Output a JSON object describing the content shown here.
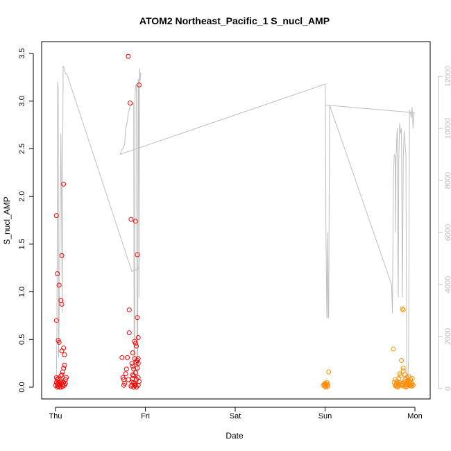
{
  "chart_data": {
    "type": "scatter",
    "title": "ATOM2 Northeast_Pacific_1 S_nucl_AMP",
    "xlabel": "Date",
    "ylabel": "S_nucl_AMP",
    "x_ticks": [
      "Thu",
      "Fri",
      "Sat",
      "Sun",
      "Mon"
    ],
    "ylim": [
      0,
      3.5
    ],
    "y_ticks": [
      "0.0",
      "0.5",
      "1.0",
      "1.5",
      "2.0",
      "2.5",
      "3.0",
      "3.5"
    ],
    "y2lim": [
      0,
      12000
    ],
    "y2_ticks": [
      "0",
      "2000",
      "4000",
      "6000",
      "8000",
      "10000",
      "12000"
    ],
    "colors": {
      "scatter_early": "#ff0000",
      "scatter_late": "#ff8c00",
      "line": "#bebebe",
      "axis": "#000000",
      "right_axis": "#bdbdbd"
    },
    "scatter_red": [
      [
        0.0,
        0.02
      ],
      [
        0.01,
        0.05
      ],
      [
        0.01,
        0.1
      ],
      [
        0.01,
        0.7
      ],
      [
        0.01,
        1.8
      ],
      [
        0.02,
        0.0
      ],
      [
        0.02,
        0.03
      ],
      [
        0.02,
        1.19
      ],
      [
        0.03,
        0.49
      ],
      [
        0.03,
        0.04
      ],
      [
        0.03,
        0.01
      ],
      [
        0.04,
        0.47
      ],
      [
        0.04,
        1.07
      ],
      [
        0.05,
        0.02
      ],
      [
        0.05,
        0.08
      ],
      [
        0.06,
        0.06
      ],
      [
        0.06,
        0.91
      ],
      [
        0.06,
        0.0
      ],
      [
        0.07,
        0.87
      ],
      [
        0.07,
        0.13
      ],
      [
        0.07,
        1.38
      ],
      [
        0.07,
        0.38
      ],
      [
        0.08,
        0.16
      ],
      [
        0.08,
        0.03
      ],
      [
        0.09,
        0.2
      ],
      [
        0.09,
        0.05
      ],
      [
        0.09,
        2.13
      ],
      [
        0.09,
        0.41
      ],
      [
        0.1,
        0.34
      ],
      [
        0.1,
        0.23
      ],
      [
        0.11,
        0.08
      ],
      [
        0.11,
        0.04
      ],
      [
        0.12,
        0.1
      ],
      [
        0.05,
        0.0
      ],
      [
        0.04,
        0.05
      ],
      [
        0.08,
        0.01
      ],
      [
        0.06,
        0.12
      ],
      [
        0.03,
        0.09
      ],
      [
        0.1,
        0.02
      ],
      [
        0.02,
        0.08
      ],
      [
        0.74,
        0.31
      ],
      [
        0.75,
        0.1
      ],
      [
        0.76,
        0.02
      ],
      [
        0.76,
        0.08
      ],
      [
        0.77,
        0.04
      ],
      [
        0.78,
        0.14
      ],
      [
        0.79,
        0.19
      ],
      [
        0.8,
        0.31
      ],
      [
        0.81,
        0.08
      ],
      [
        0.82,
        0.81
      ],
      [
        0.82,
        0.57
      ],
      [
        0.83,
        2.98
      ],
      [
        0.84,
        1.76
      ],
      [
        0.85,
        0.02
      ],
      [
        0.85,
        0.25
      ],
      [
        0.86,
        0.09
      ],
      [
        0.86,
        0.36
      ],
      [
        0.87,
        0.0
      ],
      [
        0.87,
        0.05
      ],
      [
        0.88,
        0.02
      ],
      [
        0.88,
        0.48
      ],
      [
        0.89,
        0.46
      ],
      [
        0.89,
        1.74
      ],
      [
        0.89,
        0.15
      ],
      [
        0.9,
        0.26
      ],
      [
        0.9,
        0.43
      ],
      [
        0.91,
        1.39
      ],
      [
        0.91,
        0.73
      ],
      [
        0.92,
        0.02
      ],
      [
        0.92,
        0.3
      ],
      [
        0.92,
        0.52
      ],
      [
        0.93,
        3.17
      ],
      [
        0.93,
        0.06
      ],
      [
        0.81,
        3.47
      ],
      [
        0.87,
        0.19
      ],
      [
        0.9,
        0.08
      ],
      [
        0.91,
        0.28
      ],
      [
        0.88,
        0.04
      ],
      [
        0.92,
        0.1
      ],
      [
        0.86,
        0.13
      ],
      [
        0.85,
        0.05
      ],
      [
        0.89,
        0.02
      ],
      [
        0.91,
        0.2
      ],
      [
        0.84,
        0.01
      ],
      [
        0.88,
        0.3
      ],
      [
        0.9,
        0.0
      ],
      [
        0.86,
        0.22
      ],
      [
        0.92,
        0.25
      ],
      [
        0.87,
        0.12
      ]
    ],
    "scatter_orange": [
      [
        2.98,
        0.02
      ],
      [
        2.99,
        0.03
      ],
      [
        3.0,
        0.04
      ],
      [
        3.0,
        0.01
      ],
      [
        3.01,
        0.03
      ],
      [
        3.01,
        0.0
      ],
      [
        3.02,
        0.02
      ],
      [
        3.02,
        0.05
      ],
      [
        3.03,
        0.03
      ],
      [
        3.04,
        0.16
      ],
      [
        3.03,
        0.01
      ],
      [
        3.0,
        0.02
      ],
      [
        3.76,
        0.4
      ],
      [
        3.77,
        0.05
      ],
      [
        3.78,
        0.02
      ],
      [
        3.78,
        0.08
      ],
      [
        3.79,
        0.03
      ],
      [
        3.8,
        0.06
      ],
      [
        3.8,
        0.01
      ],
      [
        3.81,
        0.04
      ],
      [
        3.82,
        0.02
      ],
      [
        3.82,
        0.09
      ],
      [
        3.83,
        0.05
      ],
      [
        3.84,
        0.03
      ],
      [
        3.84,
        0.12
      ],
      [
        3.85,
        0.02
      ],
      [
        3.85,
        0.28
      ],
      [
        3.86,
        0.04
      ],
      [
        3.86,
        0.82
      ],
      [
        3.87,
        0.81
      ],
      [
        3.87,
        0.17
      ],
      [
        3.88,
        0.06
      ],
      [
        3.88,
        0.01
      ],
      [
        3.89,
        0.03
      ],
      [
        3.89,
        0.08
      ],
      [
        3.9,
        0.02
      ],
      [
        3.9,
        0.05
      ],
      [
        3.91,
        0.1
      ],
      [
        3.91,
        0.01
      ],
      [
        3.92,
        0.04
      ],
      [
        3.92,
        0.07
      ],
      [
        3.93,
        0.02
      ],
      [
        3.93,
        0.03
      ],
      [
        3.94,
        0.06
      ],
      [
        3.94,
        0.05
      ],
      [
        3.95,
        0.08
      ],
      [
        3.95,
        0.02
      ],
      [
        3.96,
        0.01
      ],
      [
        3.96,
        0.04
      ],
      [
        3.97,
        0.03
      ],
      [
        3.97,
        0.09
      ],
      [
        3.98,
        0.02
      ],
      [
        3.83,
        0.14
      ],
      [
        3.87,
        0.2
      ],
      [
        3.89,
        0.13
      ],
      [
        3.81,
        0.0
      ],
      [
        3.93,
        0.11
      ],
      [
        3.86,
        0.02
      ],
      [
        3.9,
        0.0
      ],
      [
        3.79,
        0.01
      ]
    ],
    "line_series_right_axis": [
      [
        0.0,
        0
      ],
      [
        0.01,
        600
      ],
      [
        0.015,
        1800
      ],
      [
        0.02,
        6500
      ],
      [
        0.025,
        11800
      ],
      [
        0.03,
        11500
      ],
      [
        0.035,
        1200
      ],
      [
        0.04,
        2700
      ],
      [
        0.05,
        6000
      ],
      [
        0.06,
        9800
      ],
      [
        0.07,
        5500
      ],
      [
        0.075,
        2900
      ],
      [
        0.08,
        9000
      ],
      [
        0.085,
        12400
      ],
      [
        0.1,
        12300
      ],
      [
        0.11,
        12100
      ],
      [
        0.125,
        12100
      ],
      [
        0.85,
        4500
      ],
      [
        0.92,
        4600
      ],
      [
        0.93,
        4700
      ],
      [
        0.935,
        12300
      ],
      [
        0.94,
        12150
      ],
      [
        0.95,
        12100
      ],
      [
        0.94,
        11800
      ],
      [
        0.935,
        12300
      ],
      [
        0.93,
        3500
      ],
      [
        0.925,
        11900
      ],
      [
        0.92,
        11800
      ],
      [
        0.915,
        300
      ],
      [
        0.91,
        200
      ],
      [
        0.905,
        6000
      ],
      [
        0.9,
        11700
      ],
      [
        0.89,
        11600
      ],
      [
        0.885,
        11200
      ],
      [
        0.88,
        100
      ],
      [
        0.875,
        300
      ],
      [
        0.87,
        11000
      ],
      [
        0.86,
        10900
      ],
      [
        0.84,
        10900
      ],
      [
        0.83,
        10900
      ],
      [
        0.82,
        10700
      ],
      [
        0.81,
        10600
      ],
      [
        0.8,
        10300
      ],
      [
        0.79,
        10100
      ],
      [
        0.78,
        10000
      ],
      [
        0.77,
        9400
      ],
      [
        0.76,
        9300
      ],
      [
        0.75,
        9200
      ],
      [
        0.74,
        9200
      ],
      [
        0.73,
        9100
      ],
      [
        0.72,
        9000
      ],
      [
        3.0,
        11700
      ],
      [
        3.005,
        10900
      ],
      [
        3.01,
        5800
      ],
      [
        3.02,
        2700
      ],
      [
        3.03,
        6000
      ],
      [
        3.035,
        2700
      ],
      [
        3.04,
        2800
      ],
      [
        3.05,
        10900
      ],
      [
        3.74,
        4000
      ],
      [
        3.75,
        2900
      ],
      [
        3.76,
        8000
      ],
      [
        3.77,
        9000
      ],
      [
        3.78,
        8900
      ],
      [
        3.785,
        6000
      ],
      [
        3.79,
        8800
      ],
      [
        3.8,
        9800
      ],
      [
        3.805,
        10000
      ],
      [
        3.81,
        4900
      ],
      [
        3.815,
        3500
      ],
      [
        3.82,
        8700
      ],
      [
        3.83,
        10200
      ],
      [
        3.84,
        9800
      ],
      [
        3.85,
        10000
      ],
      [
        3.86,
        3500
      ],
      [
        3.87,
        8800
      ],
      [
        3.88,
        9900
      ],
      [
        3.89,
        9400
      ],
      [
        3.9,
        9000
      ],
      [
        3.91,
        100
      ],
      [
        3.92,
        300
      ],
      [
        3.93,
        1100
      ],
      [
        3.94,
        10700
      ],
      [
        3.95,
        10600
      ],
      [
        3.96,
        10400
      ],
      [
        3.97,
        10800
      ],
      [
        3.98,
        10000
      ],
      [
        3.99,
        10600
      ],
      [
        4.0,
        10600
      ],
      [
        3.0,
        10900
      ]
    ]
  }
}
